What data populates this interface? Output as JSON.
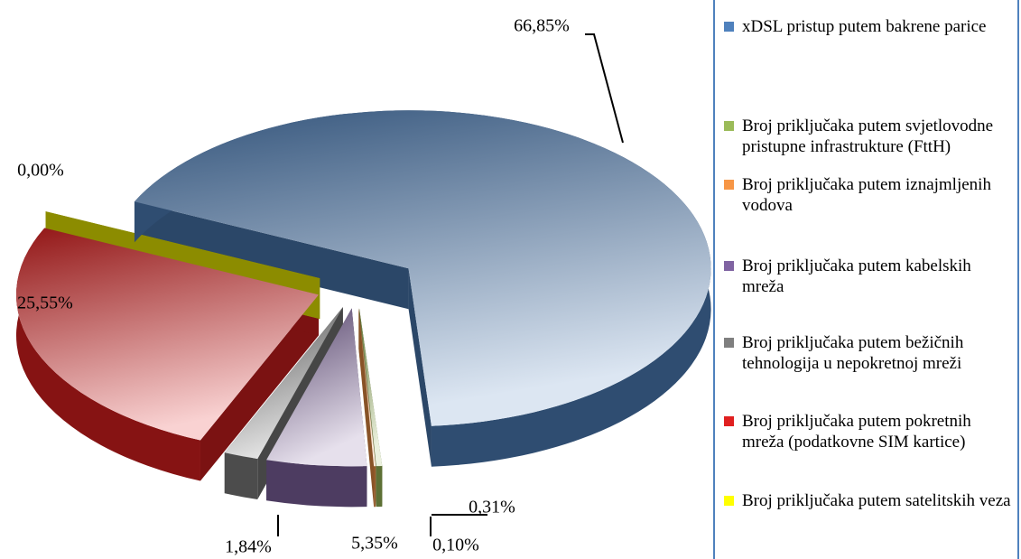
{
  "chart_data": {
    "type": "pie",
    "categories": [
      "xDSL pristup putem bakrene parice",
      "Broj priključaka putem svjetlovodne pristupne infrastrukture (FttH)",
      "Broj priključaka putem iznajmljenih vodova",
      "Broj priključaka putem kabelskih mreža",
      "Broj priključaka putem bežičnih tehnologija u nepokretnoj mreži",
      "Broj priključaka putem pokretnih mreža (podatkovne SIM kartice)",
      "Broj priključaka putem satelitskih veza"
    ],
    "values": [
      66.85,
      0.31,
      0.1,
      5.35,
      1.84,
      25.55,
      0.0
    ],
    "value_labels": [
      "66,85%",
      "0,31%",
      "0,10%",
      "5,35%",
      "1,84%",
      "25,55%",
      "0,00%"
    ],
    "colors": [
      "#4f81bd",
      "#9bbb59",
      "#f79646",
      "#8064a2",
      "#7f7f7f",
      "#e02020",
      "#ffff00"
    ],
    "legend": "right"
  }
}
